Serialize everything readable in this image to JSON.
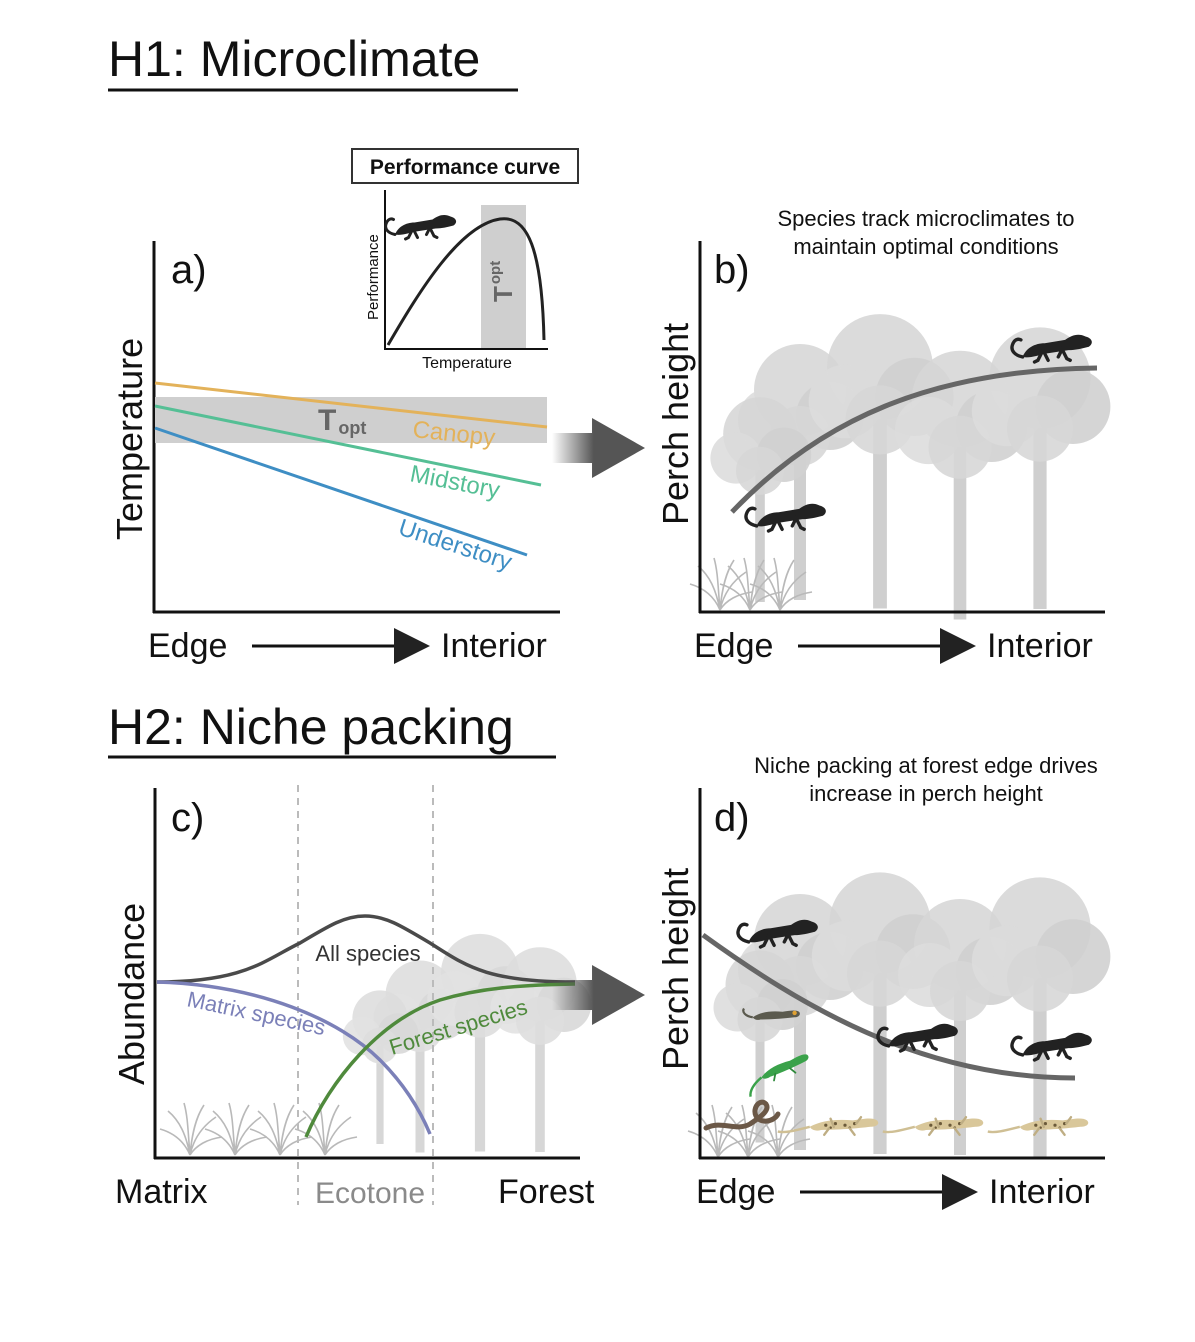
{
  "hypothesis1": {
    "title": "H1: Microclimate",
    "panel_a": {
      "label": "a)",
      "y_axis": "Temperature",
      "x_start": "Edge",
      "x_end": "Interior",
      "band_label": "T",
      "band_sub": "opt",
      "lines": [
        {
          "name": "Canopy",
          "color": "#e3b25a"
        },
        {
          "name": "Midstory",
          "color": "#55bf95"
        },
        {
          "name": "Understory",
          "color": "#3e8ec4"
        }
      ]
    },
    "inset": {
      "title": "Performance curve",
      "y_axis": "Performance",
      "x_axis": "Temperature",
      "band_label": "T",
      "band_sub": "opt"
    },
    "panel_b": {
      "label": "b)",
      "y_axis": "Perch height",
      "x_start": "Edge",
      "x_end": "Interior",
      "caption_line1": "Species track microclimates to",
      "caption_line2": "maintain optimal conditions"
    }
  },
  "hypothesis2": {
    "title": "H2: Niche packing",
    "panel_c": {
      "label": "c)",
      "y_axis": "Abundance",
      "x_left": "Matrix",
      "x_mid": "Ecotone",
      "x_right": "Forest",
      "curves": [
        {
          "name": "All species",
          "color": "#4a4a4a"
        },
        {
          "name": "Matrix species",
          "color": "#7b80b8"
        },
        {
          "name": "Forest species",
          "color": "#4f8a3c"
        }
      ]
    },
    "panel_d": {
      "label": "d)",
      "y_axis": "Perch height",
      "x_start": "Edge",
      "x_end": "Interior",
      "caption_line1": "Niche packing at forest edge drives",
      "caption_line2": "increase in perch height"
    }
  },
  "icons": [
    "lizard-icon",
    "gecko-icon",
    "snake-icon",
    "tree-icon",
    "grass-icon",
    "arrow-icon"
  ]
}
